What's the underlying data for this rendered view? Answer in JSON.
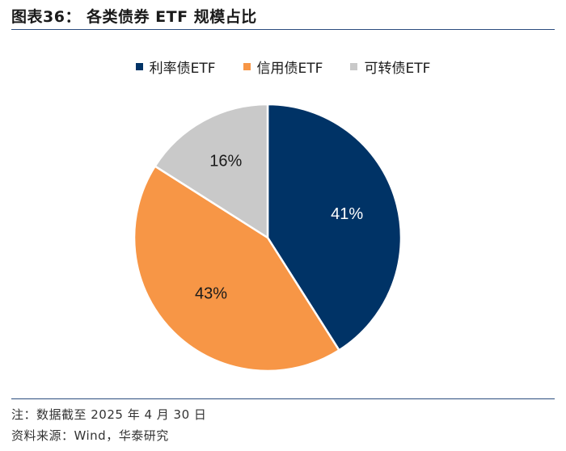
{
  "figure": {
    "title": "图表36：  各类债券 ETF 规模占比"
  },
  "chart_data": {
    "type": "pie",
    "title": "",
    "categories": [
      "利率债ETF",
      "信用债ETF",
      "可转债ETF"
    ],
    "values": [
      41,
      43,
      16
    ],
    "labels": [
      "41%",
      "43%",
      "16%"
    ],
    "colors": [
      "#003366",
      "#f79646",
      "#c9c9c9"
    ],
    "label_colors": [
      "#ffffff",
      "#1a1a1a",
      "#1a1a1a"
    ],
    "start": "12 o'clock",
    "direction": "clockwise",
    "legend_position": "top"
  },
  "footer": {
    "note": "注：数据截至 2025 年 4 月 30 日",
    "source": "资料来源：Wind，华泰研究"
  }
}
